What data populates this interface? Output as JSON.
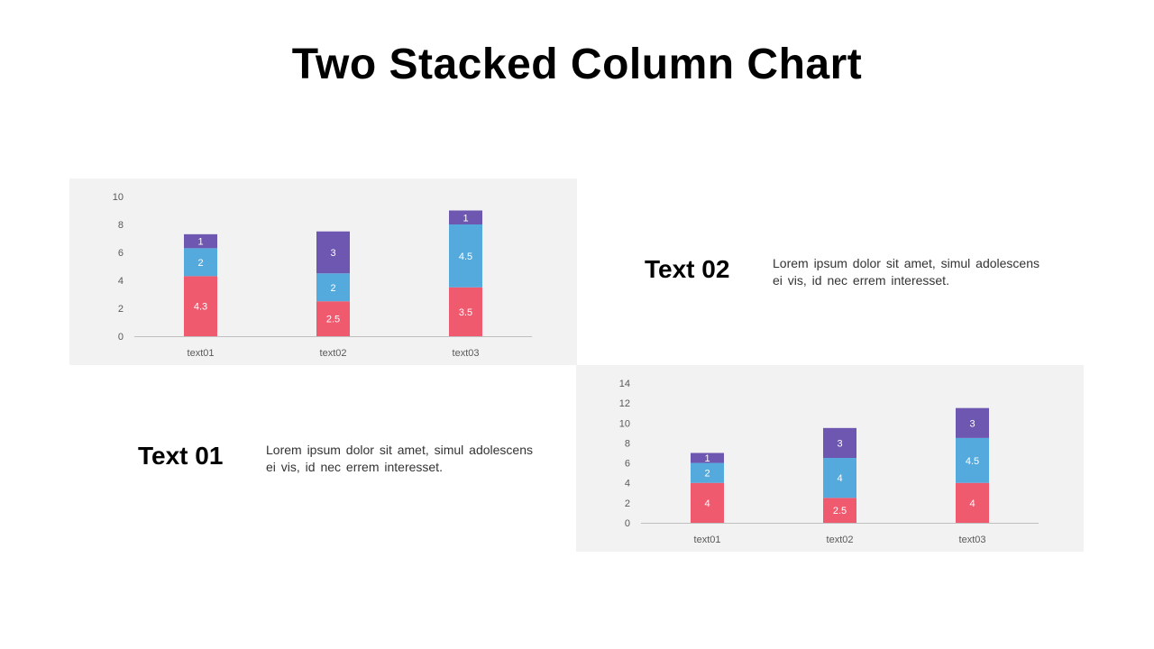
{
  "title": "Two Stacked Column Chart",
  "colors": {
    "bottom": "#f05a6e",
    "middle": "#54a9dd",
    "top": "#6d57b0",
    "axis": "#bfbfbf",
    "panel": "#f2f2f2"
  },
  "sections": [
    {
      "heading": "Text 02",
      "body": "Lorem ipsum dolor sit amet, simul adolescens ei vis, id nec errem interesset."
    },
    {
      "heading": "Text 01",
      "body": "Lorem ipsum dolor sit amet, simul adolescens ei vis, id nec errem interesset."
    }
  ],
  "chart_data": [
    {
      "type": "bar",
      "stacked": true,
      "categories": [
        "text01",
        "text02",
        "text03"
      ],
      "series": [
        {
          "values": [
            4.3,
            2.5,
            3.5
          ],
          "color": "#f05a6e"
        },
        {
          "values": [
            2,
            2,
            4.5
          ],
          "color": "#54a9dd"
        },
        {
          "values": [
            1,
            3,
            1
          ],
          "color": "#6d57b0"
        }
      ],
      "ylim": [
        0,
        10
      ],
      "yticks": [
        0,
        2,
        4,
        6,
        8,
        10
      ],
      "grid": false,
      "data_labels": true
    },
    {
      "type": "bar",
      "stacked": true,
      "categories": [
        "text01",
        "text02",
        "text03"
      ],
      "series": [
        {
          "values": [
            4,
            2.5,
            4
          ],
          "color": "#f05a6e"
        },
        {
          "values": [
            2,
            4,
            4.5
          ],
          "color": "#54a9dd"
        },
        {
          "values": [
            1,
            3,
            3
          ],
          "color": "#6d57b0"
        }
      ],
      "ylim": [
        0,
        14
      ],
      "yticks": [
        0,
        2,
        4,
        6,
        8,
        10,
        12,
        14
      ],
      "grid": false,
      "data_labels": true
    }
  ]
}
